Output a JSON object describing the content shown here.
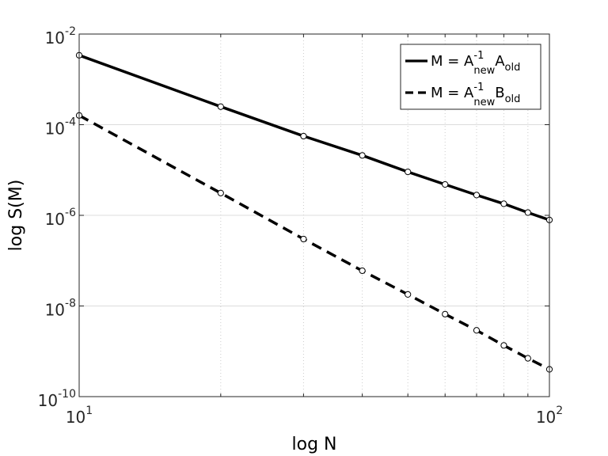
{
  "chart_data": {
    "type": "line",
    "xlabel": "log N",
    "ylabel": "log S(M)",
    "xscale": "log",
    "yscale": "log",
    "xlim": [
      10,
      100
    ],
    "ylim": [
      1e-10,
      0.01
    ],
    "grid": "on",
    "legend_position": "top-right",
    "x_ticks": [
      {
        "base": "10",
        "exp": "1",
        "value": 10
      },
      {
        "base": "10",
        "exp": "2",
        "value": 100
      }
    ],
    "y_ticks": [
      {
        "base": "10",
        "exp": "-2",
        "value": 0.01
      },
      {
        "base": "10",
        "exp": "-4",
        "value": 0.0001
      },
      {
        "base": "10",
        "exp": "-6",
        "value": 1e-06
      },
      {
        "base": "10",
        "exp": "-8",
        "value": 1e-08
      },
      {
        "base": "10",
        "exp": "-10",
        "value": 1e-10
      }
    ],
    "series": [
      {
        "legend": {
          "lhs": "M = A",
          "sup": "-1",
          "sub": "new",
          "rhs": "A",
          "rhs_sub": "old"
        },
        "style": "solid",
        "color": "#000000",
        "x": [
          10,
          20,
          30,
          40,
          50,
          60,
          70,
          80,
          90,
          100
        ],
        "y": [
          0.0034,
          0.00025,
          5.6e-05,
          2.1e-05,
          9.1e-06,
          4.8e-06,
          2.8e-06,
          1.8e-06,
          1.15e-06,
          7.9e-07
        ]
      },
      {
        "legend": {
          "lhs": "M = A",
          "sup": "-1",
          "sub": "new",
          "rhs": "B",
          "rhs_sub": "old"
        },
        "style": "dashed",
        "color": "#000000",
        "x": [
          10,
          20,
          30,
          40,
          50,
          60,
          70,
          80,
          90,
          100
        ],
        "y": [
          0.00016,
          3.1e-06,
          3e-07,
          6e-08,
          1.8e-08,
          6.6e-09,
          2.9e-09,
          1.35e-09,
          7e-10,
          4e-10
        ]
      }
    ]
  }
}
